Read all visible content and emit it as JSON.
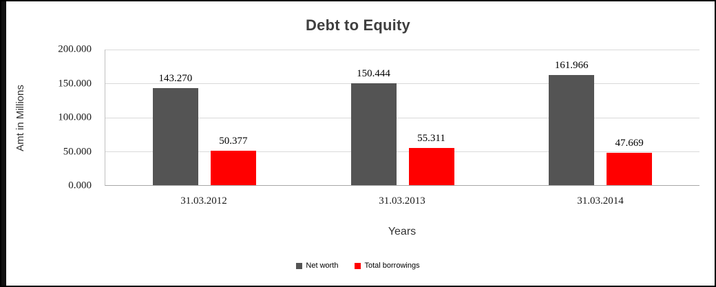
{
  "chart_data": {
    "type": "bar",
    "title": "Debt to Equity",
    "xlabel": "Years",
    "ylabel": "Amt in Millions",
    "categories": [
      "31.03.2012",
      "31.03.2013",
      "31.03.2014"
    ],
    "series": [
      {
        "name": "Net worth",
        "color": "#545454",
        "values": [
          143.27,
          150.444,
          161.966
        ],
        "labels": [
          "143.270",
          "150.444",
          "161.966"
        ]
      },
      {
        "name": "Total borrowings",
        "color": "#ff0000",
        "values": [
          50.377,
          55.311,
          47.669
        ],
        "labels": [
          "50.377",
          "55.311",
          "47.669"
        ]
      }
    ],
    "ylim": [
      0,
      200
    ],
    "yticks": [
      "200.000",
      "150.000",
      "100.000",
      "50.000",
      "0.000"
    ],
    "grid": true,
    "legend_position": "bottom"
  }
}
